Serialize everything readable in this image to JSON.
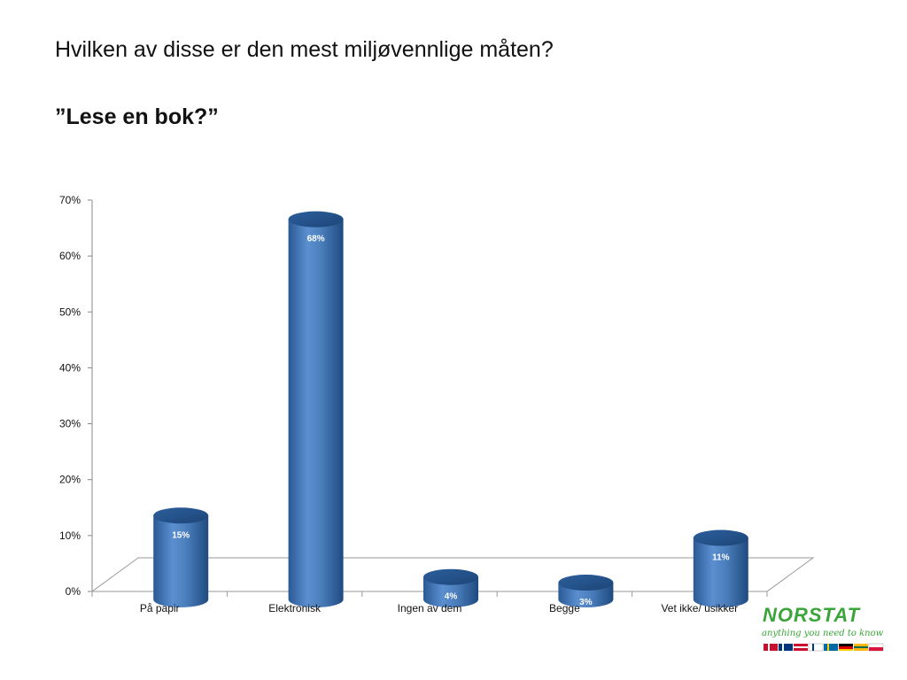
{
  "slide": {
    "title": "Hvilken av disse er den mest miljøvennlige måten?",
    "subtitle": "”Lese en bok?”"
  },
  "chart_data": {
    "type": "bar",
    "style": "3d-cylinder",
    "categories": [
      "På papir",
      "Elektronisk",
      "Ingen av dem",
      "Begge",
      "Vet ikke/ usikker"
    ],
    "values": [
      15,
      68,
      4,
      3,
      11
    ],
    "data_labels": [
      "15%",
      "68%",
      "4%",
      "3%",
      "11%"
    ],
    "y_ticks": [
      "0%",
      "10%",
      "20%",
      "30%",
      "40%",
      "50%",
      "60%",
      "70%"
    ],
    "ylim": [
      0,
      70
    ],
    "grid": false,
    "legend": "none",
    "bar_color": "#4a7ebb"
  },
  "logo": {
    "wordmark": "NORSTAT",
    "tagline": "anything you need to know",
    "color": "#3aa63a"
  }
}
